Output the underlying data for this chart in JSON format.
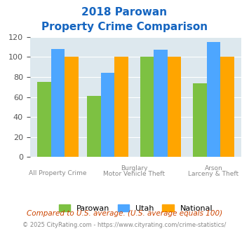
{
  "title_line1": "2018 Parowan",
  "title_line2": "Property Crime Comparison",
  "title_color": "#1565c0",
  "categories_data": [
    [
      75,
      108,
      100
    ],
    [
      61,
      84,
      100
    ],
    [
      100,
      107,
      100
    ],
    [
      74,
      115,
      100
    ]
  ],
  "x_positions": [
    0.35,
    1.15,
    2.0,
    2.85
  ],
  "group_colors": [
    "#7dc142",
    "#4da6ff",
    "#ffa500"
  ],
  "ylim": [
    0,
    120
  ],
  "yticks": [
    0,
    20,
    40,
    60,
    80,
    100,
    120
  ],
  "bg_color": "#dde8ee",
  "bar_width": 0.22,
  "legend_labels": [
    "Parowan",
    "Utah",
    "National"
  ],
  "label_bottom_1": "All Property Crime",
  "label_top_2": "Burglary",
  "label_bottom_2": "Motor Vehicle Theft",
  "label_top_3": "Arson",
  "label_bottom_3": "Larceny & Theft",
  "label_color": "#888888",
  "label_fontsize": 6.5,
  "title_fontsize": 11,
  "footnote1": "Compared to U.S. average. (U.S. average equals 100)",
  "footnote2": "© 2025 CityRating.com - https://www.cityrating.com/crime-statistics/",
  "footnote1_color": "#cc4400",
  "footnote2_color": "#888888"
}
